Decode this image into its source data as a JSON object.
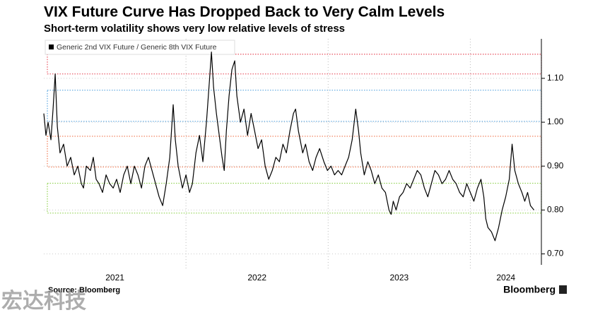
{
  "chart_data": {
    "type": "line",
    "title": "VIX Future Curve Has Dropped Back to Very Calm Levels",
    "subtitle": "Short-term volatility shows very low relative levels of stress",
    "source": "Source: Bloomberg",
    "brand": "Bloomberg",
    "watermark": "宏达科技",
    "x": [
      2021,
      2021.015,
      2021.03,
      2021.05,
      2021.065,
      2021.08,
      2021.095,
      2021.114,
      2021.139,
      2021.164,
      2021.189,
      2021.214,
      2021.239,
      2021.264,
      2021.279,
      2021.299,
      2021.328,
      2021.348,
      2021.368,
      2021.388,
      2021.413,
      2021.438,
      2021.463,
      2021.488,
      2021.512,
      2021.537,
      2021.562,
      2021.587,
      2021.612,
      2021.637,
      2021.662,
      2021.687,
      2021.711,
      2021.736,
      2021.761,
      2021.786,
      2021.811,
      2021.836,
      2021.861,
      2021.886,
      2021.91,
      2021.925,
      2021.945,
      2021.975,
      2022,
      2022.025,
      2022.045,
      2022.07,
      2022.095,
      2022.119,
      2022.144,
      2022.164,
      2022.179,
      2022.194,
      2022.214,
      2022.234,
      2022.254,
      2022.269,
      2022.284,
      2022.303,
      2022.323,
      2022.343,
      2022.358,
      2022.383,
      2022.408,
      2022.433,
      2022.458,
      2022.483,
      2022.507,
      2022.532,
      2022.557,
      2022.582,
      2022.607,
      2022.632,
      2022.657,
      2022.682,
      2022.706,
      2022.731,
      2022.756,
      2022.771,
      2022.791,
      2022.821,
      2022.841,
      2022.866,
      2022.891,
      2022.915,
      2022.94,
      2022.97,
      2022.995,
      2023.02,
      2023.045,
      2023.07,
      2023.095,
      2023.119,
      2023.144,
      2023.169,
      2023.194,
      2023.214,
      2023.229,
      2023.254,
      2023.279,
      2023.303,
      2023.328,
      2023.353,
      2023.378,
      2023.403,
      2023.428,
      2023.443,
      2023.458,
      2023.478,
      2023.502,
      2023.527,
      2023.552,
      2023.577,
      2023.602,
      2023.627,
      2023.652,
      2023.677,
      2023.701,
      2023.726,
      2023.751,
      2023.776,
      2023.801,
      2023.826,
      2023.851,
      2023.876,
      2023.9,
      2023.925,
      2023.95,
      2023.975,
      2024,
      2024.025,
      2024.05,
      2024.075,
      2024.095,
      2024.109,
      2024.124,
      2024.149,
      2024.174,
      2024.199,
      2024.224,
      2024.249,
      2024.274,
      2024.294,
      2024.313,
      2024.338,
      2024.363,
      2024.383,
      2024.403,
      2024.423,
      2024.448
    ],
    "series": [
      {
        "name": "Generic 2nd VIX Future / Generic 8th VIX Future",
        "color": "#000000",
        "values": [
          1.02,
          0.97,
          1.0,
          0.96,
          1.03,
          1.11,
          0.99,
          0.93,
          0.95,
          0.9,
          0.92,
          0.88,
          0.9,
          0.86,
          0.85,
          0.9,
          0.89,
          0.92,
          0.87,
          0.86,
          0.84,
          0.88,
          0.86,
          0.85,
          0.87,
          0.84,
          0.88,
          0.9,
          0.86,
          0.9,
          0.88,
          0.85,
          0.9,
          0.92,
          0.89,
          0.86,
          0.83,
          0.81,
          0.86,
          0.92,
          1.04,
          0.96,
          0.9,
          0.85,
          0.88,
          0.84,
          0.86,
          0.93,
          0.97,
          0.91,
          1.0,
          1.09,
          1.16,
          1.08,
          1.02,
          0.97,
          0.92,
          0.89,
          0.98,
          1.06,
          1.12,
          1.14,
          1.06,
          1.0,
          1.03,
          0.97,
          1.02,
          0.98,
          0.94,
          0.96,
          0.9,
          0.87,
          0.89,
          0.92,
          0.91,
          0.95,
          0.93,
          0.98,
          1.02,
          1.03,
          0.98,
          0.93,
          0.95,
          0.91,
          0.89,
          0.92,
          0.94,
          0.91,
          0.89,
          0.9,
          0.88,
          0.89,
          0.88,
          0.9,
          0.92,
          0.96,
          1.03,
          0.98,
          0.93,
          0.88,
          0.91,
          0.89,
          0.86,
          0.88,
          0.85,
          0.84,
          0.8,
          0.79,
          0.82,
          0.8,
          0.83,
          0.84,
          0.86,
          0.85,
          0.87,
          0.89,
          0.88,
          0.85,
          0.83,
          0.86,
          0.89,
          0.88,
          0.86,
          0.87,
          0.89,
          0.87,
          0.86,
          0.84,
          0.83,
          0.86,
          0.84,
          0.82,
          0.85,
          0.87,
          0.83,
          0.78,
          0.76,
          0.75,
          0.73,
          0.76,
          0.8,
          0.83,
          0.87,
          0.95,
          0.89,
          0.86,
          0.84,
          0.82,
          0.84,
          0.81,
          0.8
        ]
      }
    ],
    "bands": [
      {
        "range": [
          1.11,
          1.155
        ],
        "color": "#e8505f"
      },
      {
        "range": [
          1.002,
          1.073
        ],
        "color": "#5aa6e0"
      },
      {
        "range": [
          0.898,
          0.968
        ],
        "color": "#f07850"
      },
      {
        "range": [
          0.793,
          0.861
        ],
        "color": "#8fd14f"
      }
    ],
    "xlim": [
      2021,
      2024.5
    ],
    "xticks": [
      2021,
      2022,
      2023,
      2024
    ],
    "ylim": [
      0.675,
      1.19
    ],
    "yticks": [
      {
        "value": 0.7,
        "label": "0.70"
      },
      {
        "value": 0.8,
        "label": "0.80"
      },
      {
        "value": 0.9,
        "label": "0.90"
      },
      {
        "value": 1.0,
        "label": "1.00"
      },
      {
        "value": 1.1,
        "label": "1.10"
      }
    ],
    "grid": true,
    "legend": "top-left"
  }
}
